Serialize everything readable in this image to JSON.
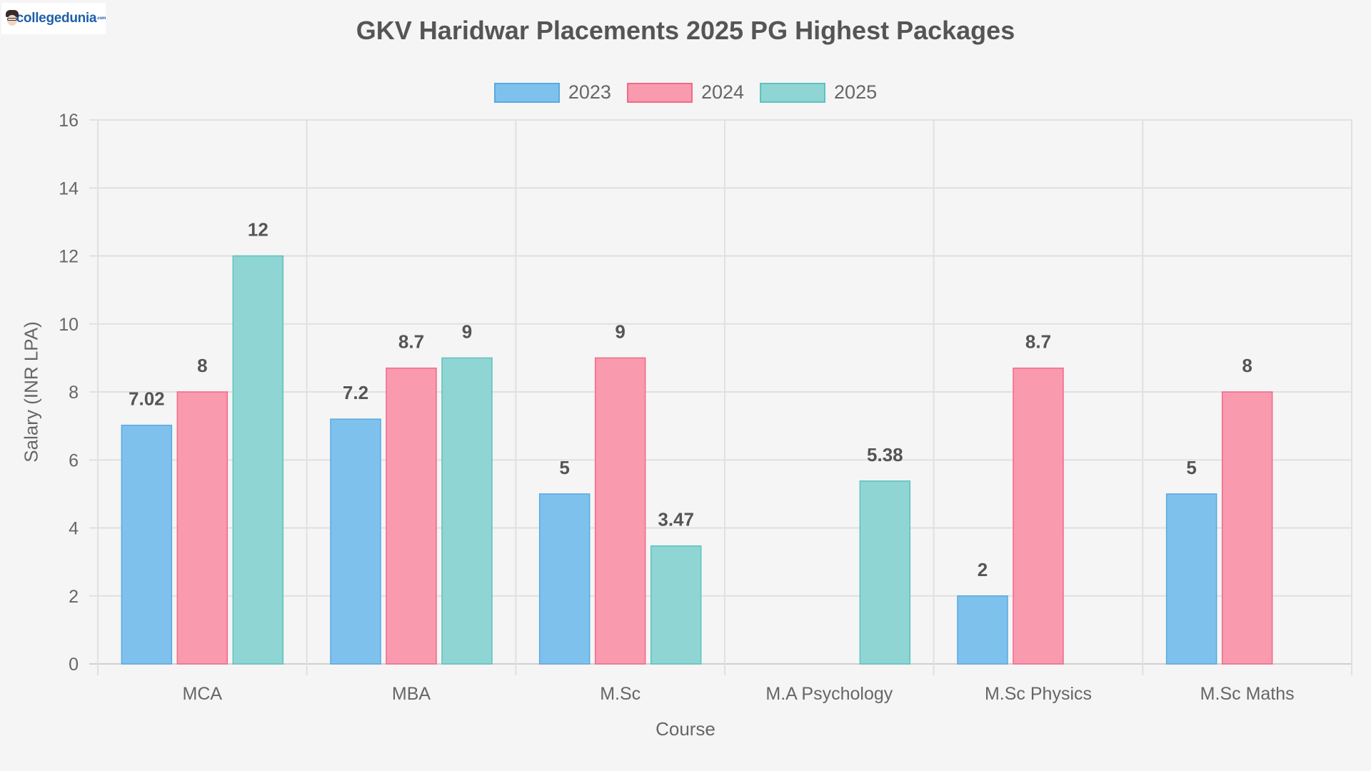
{
  "brand": {
    "name": "collegedunia",
    "suffix": ".com"
  },
  "chart_data": {
    "type": "bar",
    "title": "GKV Haridwar Placements 2025 PG Highest Packages",
    "xlabel": "Course",
    "ylabel": "Salary (INR LPA)",
    "categories": [
      "MCA",
      "MBA",
      "M.Sc",
      "M.A Psychology",
      "M.Sc Physics",
      "M.Sc Maths"
    ],
    "series": [
      {
        "name": "2023",
        "values": [
          7.02,
          7.2,
          5,
          null,
          2,
          5
        ],
        "color": "#7fc1ed",
        "border": "#5aa9e0"
      },
      {
        "name": "2024",
        "values": [
          8,
          8.7,
          9,
          null,
          8.7,
          8
        ],
        "color": "#f99aae",
        "border": "#f06a8a"
      },
      {
        "name": "2025",
        "values": [
          12,
          9,
          3.47,
          5.38,
          null,
          null
        ],
        "color": "#8fd5d3",
        "border": "#5ec2bf"
      }
    ],
    "ylim": [
      0,
      16
    ],
    "yticks": [
      0,
      2,
      4,
      6,
      8,
      10,
      12,
      14,
      16
    ],
    "grid": true,
    "legend_position": "top",
    "data_labels": true
  }
}
